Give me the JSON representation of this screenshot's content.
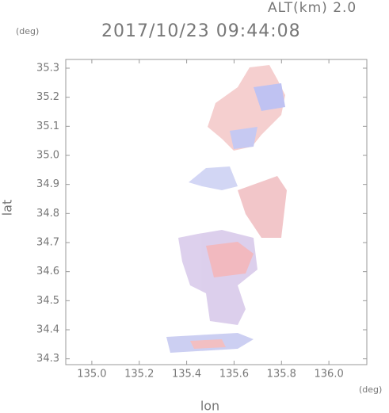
{
  "chart_data": {
    "type": "image",
    "title": "2017/10/23 09:44:08",
    "subtitle": "ALT(km) 2.0",
    "x_label": "lon",
    "y_label": "lat",
    "x_unit": "(deg)",
    "y_unit": "(deg)",
    "xlim": [
      134.89,
      136.16
    ],
    "ylim": [
      34.28,
      35.33
    ],
    "xticks": [
      {
        "value": 135,
        "label": "135.0"
      },
      135.2,
      135.4,
      135.6,
      135.8,
      {
        "value": 136,
        "label": "136.0"
      }
    ],
    "yticks": [
      34.3,
      34.4,
      34.5,
      34.6,
      34.7,
      34.8,
      34.9,
      {
        "value": 35,
        "label": "35.0"
      },
      35.1,
      35.2,
      35.3
    ]
  }
}
